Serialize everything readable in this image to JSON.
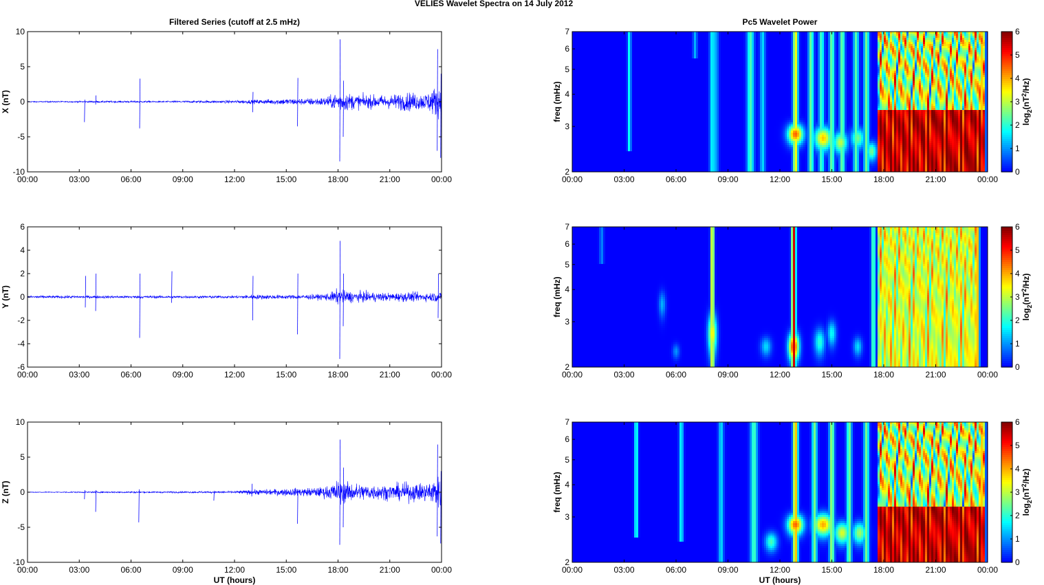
{
  "figure": {
    "suptitle": "VELIES Wavelet Spectra on 14 July      2012"
  },
  "chart_data": [
    {
      "type": "line",
      "panel": "X",
      "title": "Filtered Series (cutoff at 2.5 mHz)",
      "xlabel": "",
      "ylabel": "X (nT)",
      "x_ticks": [
        "00:00",
        "03:00",
        "06:00",
        "09:00",
        "12:00",
        "15:00",
        "18:00",
        "21:00",
        "00:00"
      ],
      "xlim_hours": [
        0,
        24
      ],
      "ylim": [
        -10,
        10
      ],
      "y_ticks": [
        -10,
        -5,
        0,
        5,
        10
      ],
      "series": [
        {
          "color": "#0000ff",
          "noise_envelope": [
            [
              0,
              0.15
            ],
            [
              2,
              0.15
            ],
            [
              4,
              0.2
            ],
            [
              6,
              0.25
            ],
            [
              8,
              0.2
            ],
            [
              10,
              0.3
            ],
            [
              12,
              0.35
            ],
            [
              13,
              0.5
            ],
            [
              14,
              0.6
            ],
            [
              15,
              0.8
            ],
            [
              16,
              0.8
            ],
            [
              17,
              1.0
            ],
            [
              17.6,
              1.5
            ],
            [
              18,
              2.5
            ],
            [
              18.5,
              2.2
            ],
            [
              19,
              1.8
            ],
            [
              20,
              1.6
            ],
            [
              21,
              1.7
            ],
            [
              22,
              2.3
            ],
            [
              23,
              2.0
            ],
            [
              23.6,
              3.5
            ],
            [
              24,
              4.0
            ]
          ],
          "spikes": [
            {
              "t": 3.3,
              "min": -2.9,
              "max": 0.3
            },
            {
              "t": 3.95,
              "min": -0.4,
              "max": 0.9
            },
            {
              "t": 6.5,
              "min": -3.8,
              "max": 3.3
            },
            {
              "t": 13.05,
              "min": -1.5,
              "max": 1.4
            },
            {
              "t": 15.65,
              "min": -3.5,
              "max": 3.4
            },
            {
              "t": 18.1,
              "min": -8.5,
              "max": 8.9
            },
            {
              "t": 18.3,
              "min": -5.0,
              "max": 3.0
            },
            {
              "t": 23.75,
              "min": -7.0,
              "max": 7.5
            },
            {
              "t": 23.95,
              "min": -8.0,
              "max": 4.0
            }
          ]
        }
      ]
    },
    {
      "type": "line",
      "panel": "Y",
      "title": "",
      "xlabel": "",
      "ylabel": "Y (nT)",
      "x_ticks": [
        "00:00",
        "03:00",
        "06:00",
        "09:00",
        "12:00",
        "15:00",
        "18:00",
        "21:00",
        "00:00"
      ],
      "xlim_hours": [
        0,
        24
      ],
      "ylim": [
        -6,
        6
      ],
      "y_ticks": [
        -6,
        -4,
        -2,
        0,
        2,
        4,
        6
      ],
      "series": [
        {
          "color": "#0000ff",
          "noise_envelope": [
            [
              0,
              0.2
            ],
            [
              3,
              0.2
            ],
            [
              6,
              0.2
            ],
            [
              9,
              0.2
            ],
            [
              12,
              0.2
            ],
            [
              13,
              0.35
            ],
            [
              15,
              0.3
            ],
            [
              17,
              0.4
            ],
            [
              17.6,
              0.7
            ],
            [
              18,
              1.2
            ],
            [
              18.5,
              0.9
            ],
            [
              19,
              0.8
            ],
            [
              21,
              0.6
            ],
            [
              22,
              0.7
            ],
            [
              23,
              0.6
            ],
            [
              24,
              0.8
            ]
          ],
          "spikes": [
            {
              "t": 3.35,
              "min": -0.9,
              "max": 1.8
            },
            {
              "t": 3.95,
              "min": -1.2,
              "max": 2.0
            },
            {
              "t": 6.5,
              "min": -3.5,
              "max": 2.0
            },
            {
              "t": 8.35,
              "min": -0.5,
              "max": 2.2
            },
            {
              "t": 13.05,
              "min": -2.0,
              "max": 1.8
            },
            {
              "t": 15.65,
              "min": -3.2,
              "max": 2.0
            },
            {
              "t": 18.1,
              "min": -5.3,
              "max": 4.8
            },
            {
              "t": 18.3,
              "min": -2.5,
              "max": 2.0
            },
            {
              "t": 23.8,
              "min": -1.8,
              "max": 2.0
            }
          ]
        }
      ]
    },
    {
      "type": "line",
      "panel": "Z",
      "title": "",
      "xlabel": "UT (hours)",
      "ylabel": "Z (nT)",
      "x_ticks": [
        "00:00",
        "03:00",
        "06:00",
        "09:00",
        "12:00",
        "15:00",
        "18:00",
        "21:00",
        "00:00"
      ],
      "xlim_hours": [
        0,
        24
      ],
      "ylim": [
        -10,
        10
      ],
      "y_ticks": [
        -10,
        -5,
        0,
        5,
        10
      ],
      "series": [
        {
          "color": "#0000ff",
          "noise_envelope": [
            [
              0,
              0.1
            ],
            [
              3,
              0.15
            ],
            [
              6,
              0.2
            ],
            [
              9,
              0.2
            ],
            [
              12,
              0.3
            ],
            [
              13,
              0.6
            ],
            [
              14,
              0.7
            ],
            [
              15,
              0.9
            ],
            [
              16,
              1.0
            ],
            [
              17,
              1.2
            ],
            [
              17.6,
              1.8
            ],
            [
              18,
              3.0
            ],
            [
              18.5,
              2.5
            ],
            [
              19,
              2.2
            ],
            [
              20,
              1.9
            ],
            [
              21,
              1.8
            ],
            [
              22,
              2.3
            ],
            [
              23,
              2.2
            ],
            [
              23.6,
              3.5
            ],
            [
              24,
              4.0
            ]
          ],
          "spikes": [
            {
              "t": 3.3,
              "min": -1.0,
              "max": 0.3
            },
            {
              "t": 3.95,
              "min": -2.8,
              "max": 0.3
            },
            {
              "t": 6.45,
              "min": -4.3,
              "max": 0.4
            },
            {
              "t": 10.8,
              "min": -1.2,
              "max": 0.2
            },
            {
              "t": 13.0,
              "min": -0.6,
              "max": 1.2
            },
            {
              "t": 15.65,
              "min": -4.5,
              "max": 0.4
            },
            {
              "t": 18.1,
              "min": -7.5,
              "max": 7.5
            },
            {
              "t": 18.3,
              "min": -5.0,
              "max": 3.5
            },
            {
              "t": 23.75,
              "min": -6.3,
              "max": 6.8
            },
            {
              "t": 23.95,
              "min": -7.3,
              "max": 3.0
            }
          ]
        }
      ]
    },
    {
      "type": "heatmap",
      "panel": "X",
      "title": "Pc5 Wavelet Power",
      "xlabel": "",
      "ylabel": "freq (mHz)",
      "colorbar_label": "log2(nT^2/Hz)",
      "x_ticks": [
        "00:00",
        "03:00",
        "06:00",
        "09:00",
        "12:00",
        "15:00",
        "18:00",
        "21:00",
        "00:00"
      ],
      "xlim_hours": [
        0,
        24
      ],
      "y_scale": "log",
      "ylim": [
        2,
        7
      ],
      "y_ticks": [
        2,
        3,
        4,
        5,
        6,
        7
      ],
      "clim": [
        0,
        6
      ],
      "c_ticks": [
        0,
        1,
        2,
        3,
        4,
        5,
        6
      ],
      "colormap": "jet",
      "features": {
        "columns": [
          {
            "t": 3.3,
            "width": 0.1,
            "amp": 1.8,
            "fmin": 2.4
          },
          {
            "t": 7.1,
            "width": 0.12,
            "amp": 1.2,
            "fmin": 5.5
          },
          {
            "t": 8.1,
            "width": 0.15,
            "amp": 1.8,
            "fmin": 2.0
          },
          {
            "t": 8.3,
            "width": 0.15,
            "amp": 1.2,
            "fmin": 2.0
          },
          {
            "t": 10.3,
            "width": 0.2,
            "amp": 2.2,
            "fmin": 2.0
          },
          {
            "t": 11.0,
            "width": 0.15,
            "amp": 1.5,
            "fmin": 2.0
          },
          {
            "t": 12.9,
            "width": 0.15,
            "amp": 3.5,
            "fmin": 2.0
          },
          {
            "t": 13.8,
            "width": 0.15,
            "amp": 2.5,
            "fmin": 2.0
          },
          {
            "t": 14.4,
            "width": 0.15,
            "amp": 2.2,
            "fmin": 2.0
          },
          {
            "t": 15.0,
            "width": 0.15,
            "amp": 2.5,
            "fmin": 2.0
          },
          {
            "t": 15.6,
            "width": 0.15,
            "amp": 2.5,
            "fmin": 2.0
          },
          {
            "t": 16.4,
            "width": 0.15,
            "amp": 2.3,
            "fmin": 2.0
          },
          {
            "t": 17.0,
            "width": 0.15,
            "amp": 2.5,
            "fmin": 2.0
          },
          {
            "t": 23.7,
            "width": 0.15,
            "amp": 4.0,
            "fmin": 2.0
          }
        ],
        "blobs": [
          {
            "t": 12.9,
            "f": 2.8,
            "dt": 0.45,
            "df": 0.25,
            "amp": 4.5
          },
          {
            "t": 14.5,
            "f": 2.7,
            "dt": 0.5,
            "df": 0.28,
            "amp": 3.8
          },
          {
            "t": 15.5,
            "f": 2.6,
            "dt": 0.4,
            "df": 0.25,
            "amp": 3.0
          },
          {
            "t": 16.5,
            "f": 2.7,
            "dt": 0.4,
            "df": 0.25,
            "amp": 2.5
          },
          {
            "t": 17.3,
            "f": 2.4,
            "dt": 0.3,
            "df": 0.2,
            "amp": 2.5
          }
        ],
        "saturated_region": {
          "t_start": 17.6,
          "t_end": 23.8,
          "f_max": 3.5,
          "level": 5.5
        }
      }
    },
    {
      "type": "heatmap",
      "panel": "Y",
      "title": "",
      "xlabel": "",
      "ylabel": "freq (mHz)",
      "colorbar_label": "log2(nT^2/Hz)",
      "x_ticks": [
        "00:00",
        "03:00",
        "06:00",
        "09:00",
        "12:00",
        "15:00",
        "18:00",
        "21:00",
        "00:00"
      ],
      "xlim_hours": [
        0,
        24
      ],
      "y_scale": "log",
      "ylim": [
        2,
        7
      ],
      "y_ticks": [
        2,
        3,
        4,
        5,
        6,
        7
      ],
      "clim": [
        0,
        6
      ],
      "c_ticks": [
        0,
        1,
        2,
        3,
        4,
        5,
        6
      ],
      "colormap": "jet",
      "features": {
        "columns": [
          {
            "t": 1.7,
            "width": 0.12,
            "amp": 0.9,
            "fmin": 5.0
          },
          {
            "t": 8.1,
            "width": 0.1,
            "amp": 4.0,
            "fmin": 2.0
          },
          {
            "t": 12.8,
            "width": 0.12,
            "amp": 5.5,
            "fmin": 2.0
          },
          {
            "t": 17.4,
            "width": 0.12,
            "amp": 2.5,
            "fmin": 2.0
          },
          {
            "t": 23.4,
            "width": 0.12,
            "amp": 4.0,
            "fmin": 2.0
          }
        ],
        "blobs": [
          {
            "t": 5.2,
            "f": 3.5,
            "dt": 0.2,
            "df": 0.4,
            "amp": 1.2
          },
          {
            "t": 6.0,
            "f": 2.3,
            "dt": 0.2,
            "df": 0.15,
            "amp": 1.0
          },
          {
            "t": 8.1,
            "f": 2.7,
            "dt": 0.25,
            "df": 0.5,
            "amp": 3.5
          },
          {
            "t": 11.2,
            "f": 2.4,
            "dt": 0.3,
            "df": 0.2,
            "amp": 1.5
          },
          {
            "t": 12.8,
            "f": 2.4,
            "dt": 0.3,
            "df": 0.3,
            "amp": 5.0
          },
          {
            "t": 14.3,
            "f": 2.5,
            "dt": 0.3,
            "df": 0.3,
            "amp": 2.0
          },
          {
            "t": 15.0,
            "f": 2.7,
            "dt": 0.25,
            "df": 0.3,
            "amp": 1.8
          },
          {
            "t": 16.5,
            "f": 2.4,
            "dt": 0.25,
            "df": 0.2,
            "amp": 1.5
          }
        ],
        "saturated_region": {
          "t_start": 17.6,
          "t_end": 23.5,
          "f_max": 7.0,
          "level": 3.2
        }
      }
    },
    {
      "type": "heatmap",
      "panel": "Z",
      "title": "",
      "xlabel": "UT (hours)",
      "ylabel": "freq (mHz)",
      "colorbar_label": "log2(nT^2/Hz)",
      "x_ticks": [
        "00:00",
        "03:00",
        "06:00",
        "09:00",
        "12:00",
        "15:00",
        "18:00",
        "21:00",
        "00:00"
      ],
      "xlim_hours": [
        0,
        24
      ],
      "y_scale": "log",
      "ylim": [
        2,
        7
      ],
      "y_ticks": [
        2,
        3,
        4,
        5,
        6,
        7
      ],
      "clim": [
        0,
        6
      ],
      "c_ticks": [
        0,
        1,
        2,
        3,
        4,
        5,
        6
      ],
      "colormap": "jet",
      "features": {
        "columns": [
          {
            "t": 3.7,
            "width": 0.1,
            "amp": 2.2,
            "fmin": 2.5
          },
          {
            "t": 6.3,
            "width": 0.12,
            "amp": 1.8,
            "fmin": 2.4
          },
          {
            "t": 8.6,
            "width": 0.15,
            "amp": 1.5,
            "fmin": 2.0
          },
          {
            "t": 10.5,
            "width": 0.2,
            "amp": 2.2,
            "fmin": 2.0
          },
          {
            "t": 12.9,
            "width": 0.15,
            "amp": 4.0,
            "fmin": 2.0
          },
          {
            "t": 14.0,
            "width": 0.15,
            "amp": 2.5,
            "fmin": 2.0
          },
          {
            "t": 15.0,
            "width": 0.15,
            "amp": 2.8,
            "fmin": 2.0
          },
          {
            "t": 16.0,
            "width": 0.15,
            "amp": 2.5,
            "fmin": 2.0
          },
          {
            "t": 17.0,
            "width": 0.15,
            "amp": 2.5,
            "fmin": 2.0
          },
          {
            "t": 23.7,
            "width": 0.15,
            "amp": 4.0,
            "fmin": 2.0
          }
        ],
        "blobs": [
          {
            "t": 12.9,
            "f": 2.8,
            "dt": 0.45,
            "df": 0.25,
            "amp": 4.5
          },
          {
            "t": 14.5,
            "f": 2.8,
            "dt": 0.55,
            "df": 0.28,
            "amp": 4.0
          },
          {
            "t": 15.6,
            "f": 2.6,
            "dt": 0.45,
            "df": 0.25,
            "amp": 3.2
          },
          {
            "t": 16.6,
            "f": 2.6,
            "dt": 0.4,
            "df": 0.25,
            "amp": 2.8
          },
          {
            "t": 11.5,
            "f": 2.4,
            "dt": 0.35,
            "df": 0.2,
            "amp": 2.2
          }
        ],
        "saturated_region": {
          "t_start": 17.6,
          "t_end": 23.8,
          "f_max": 3.3,
          "level": 5.5
        }
      }
    }
  ]
}
